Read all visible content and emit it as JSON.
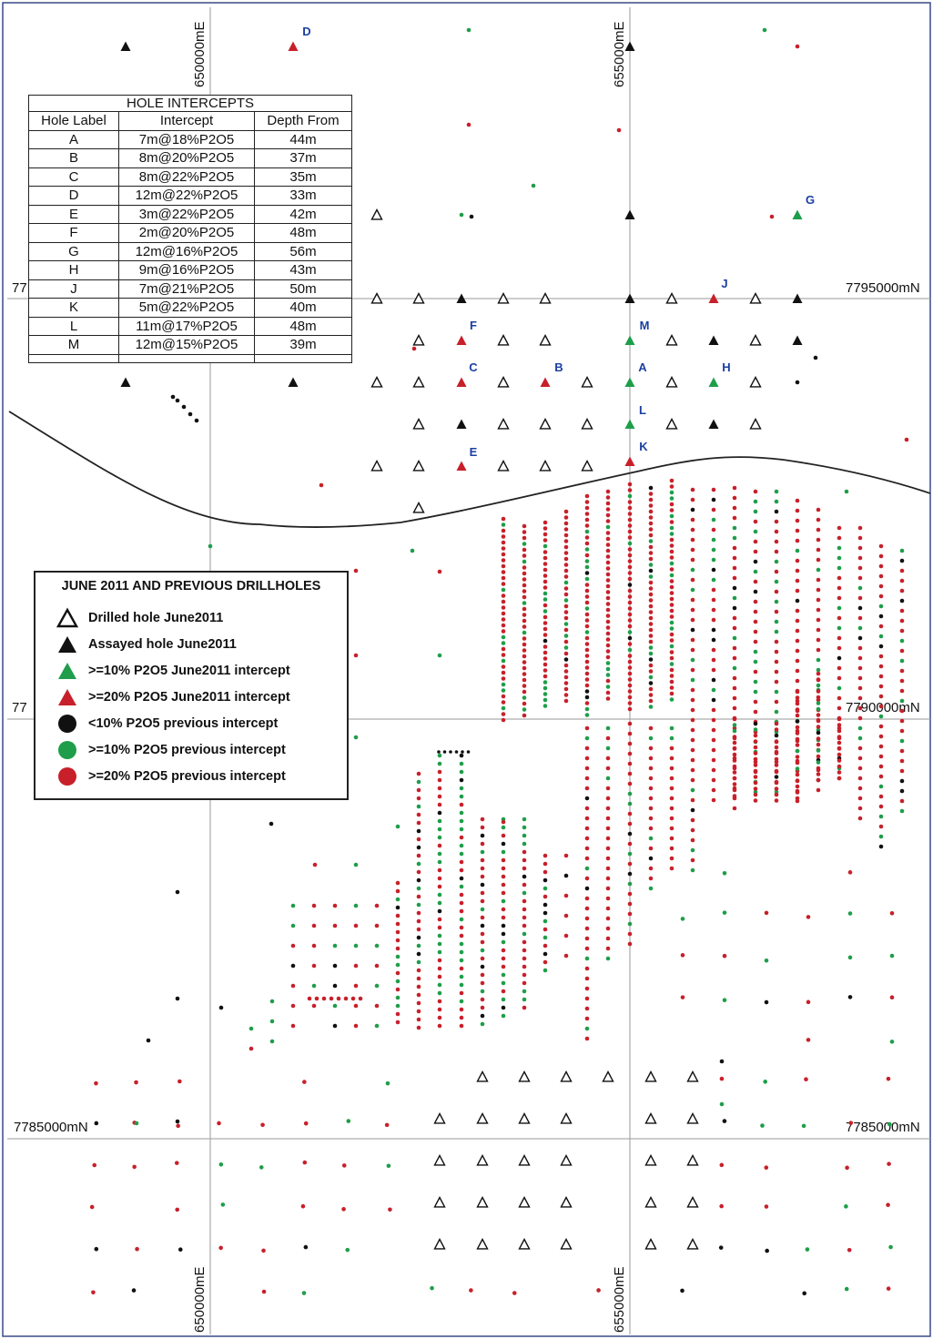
{
  "grid_labels": {
    "easting_650_top": "650000mE",
    "easting_655_top": "655000mE",
    "easting_650_bottom": "650000mE",
    "easting_655_bottom": "655000mE",
    "northing_7795_right": "7795000mN",
    "northing_7790_right": "7790000mN",
    "northing_7785_left": "7785000mN",
    "northing_7785_right": "7785000mN",
    "cut_label_1": "77",
    "cut_label_2": "77"
  },
  "intercepts_table": {
    "title": "HOLE INTERCEPTS",
    "headers": [
      "Hole Label",
      "Intercept",
      "Depth From"
    ],
    "rows": [
      [
        "A",
        "7m@18%P2O5",
        "44m"
      ],
      [
        "B",
        "8m@20%P2O5",
        "37m"
      ],
      [
        "C",
        "8m@22%P2O5",
        "35m"
      ],
      [
        "D",
        "12m@22%P2O5",
        "33m"
      ],
      [
        "E",
        "3m@22%P2O5",
        "42m"
      ],
      [
        "F",
        "2m@20%P2O5",
        "48m"
      ],
      [
        "G",
        "12m@16%P2O5",
        "56m"
      ],
      [
        "H",
        "9m@16%P2O5",
        "43m"
      ],
      [
        "J",
        "7m@21%P2O5",
        "50m"
      ],
      [
        "K",
        "5m@22%P2O5",
        "40m"
      ],
      [
        "L",
        "11m@17%P2O5",
        "48m"
      ],
      [
        "M",
        "12m@15%P2O5",
        "39m"
      ]
    ]
  },
  "legend": {
    "title": "JUNE 2011 AND PREVIOUS DRILLHOLES",
    "items": [
      {
        "label": "Drilled hole June2011",
        "symbol": "triangle-open",
        "color": "#111111"
      },
      {
        "label": "Assayed hole June2011",
        "symbol": "triangle-filled",
        "color": "#111111"
      },
      {
        "label": ">=10% P2O5 June2011 intercept",
        "symbol": "triangle-filled",
        "color": "#1e9e4a"
      },
      {
        "label": ">=20% P2O5 June2011 intercept",
        "symbol": "triangle-filled",
        "color": "#c8202a"
      },
      {
        "label": "<10% P2O5 previous intercept",
        "symbol": "circle",
        "color": "#111111"
      },
      {
        "label": ">=10% P2O5 previous intercept",
        "symbol": "circle",
        "color": "#1e9e4a"
      },
      {
        "label": ">=20% P2O5 previous intercept",
        "symbol": "circle",
        "color": "#c8202a"
      }
    ]
  },
  "hole_labels": [
    "A",
    "B",
    "C",
    "D",
    "E",
    "F",
    "G",
    "H",
    "J",
    "K",
    "L",
    "M"
  ],
  "colors": {
    "red": "#c8202a",
    "green": "#1e9e4a",
    "black": "#111111",
    "grid": "#9a9a9a",
    "frame": "#3a4a8a"
  }
}
